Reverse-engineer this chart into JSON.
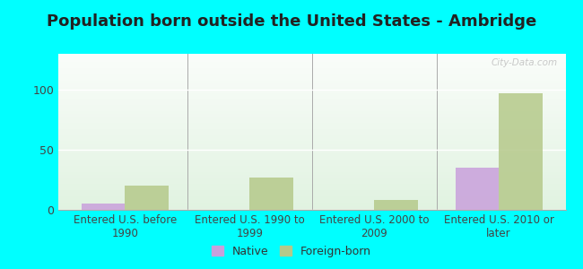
{
  "title": "Population born outside the United States - Ambridge",
  "categories": [
    "Entered U.S. before\n1990",
    "Entered U.S. 1990 to\n1999",
    "Entered U.S. 2000 to\n2009",
    "Entered U.S. 2010 or\nlater"
  ],
  "native_values": [
    5,
    0,
    0,
    35
  ],
  "foreign_values": [
    20,
    27,
    8,
    97
  ],
  "native_color": "#c9a0dc",
  "foreign_color": "#b5c98a",
  "background_color": "#00ffff",
  "ylim": [
    0,
    130
  ],
  "yticks": [
    0,
    50,
    100
  ],
  "bar_width": 0.35,
  "watermark": "City-Data.com",
  "legend_native": "Native",
  "legend_foreign": "Foreign-born",
  "title_fontsize": 13,
  "axis_label_fontsize": 8.5,
  "tick_fontsize": 9
}
